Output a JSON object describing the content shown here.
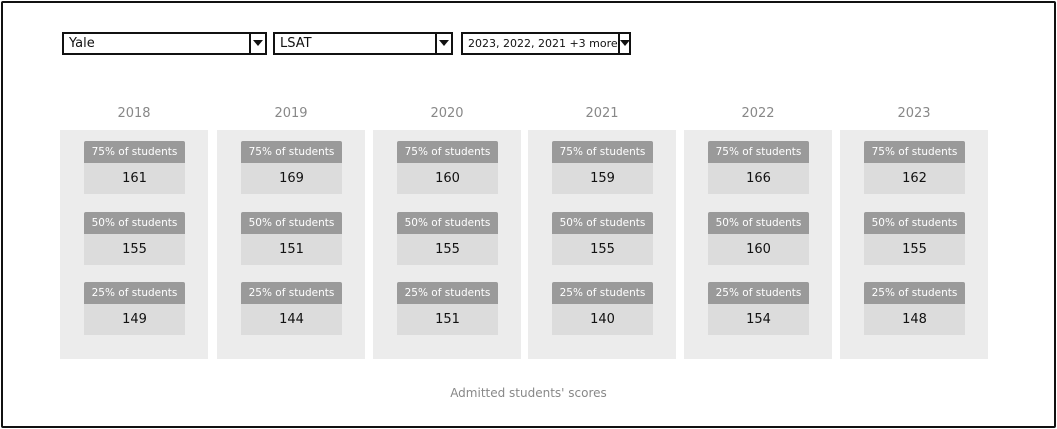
{
  "filters": {
    "school": "Yale",
    "test": "LSAT",
    "years": "2023, 2022, 2021 +3 more"
  },
  "years": [
    {
      "year": "2018",
      "p75_label": "75% of students",
      "p75": "161",
      "p50_label": "50% of students",
      "p50": "155",
      "p25_label": "25% of students",
      "p25": "149"
    },
    {
      "year": "2019",
      "p75_label": "75% of students",
      "p75": "169",
      "p50_label": "50% of students",
      "p50": "151",
      "p25_label": "25% of students",
      "p25": "144"
    },
    {
      "year": "2020",
      "p75_label": "75% of students",
      "p75": "160",
      "p50_label": "50% of students",
      "p50": "155",
      "p25_label": "25% of students",
      "p25": "151"
    },
    {
      "year": "2021",
      "p75_label": "75% of students",
      "p75": "159",
      "p50_label": "50% of students",
      "p50": "155",
      "p25_label": "25% of students",
      "p25": "140"
    },
    {
      "year": "2022",
      "p75_label": "75% of students",
      "p75": "166",
      "p50_label": "50% of students",
      "p50": "160",
      "p25_label": "25% of students",
      "p25": "154"
    },
    {
      "year": "2023",
      "p75_label": "75% of students",
      "p75": "162",
      "p50_label": "50% of students",
      "p50": "155",
      "p25_label": "25% of students",
      "p25": "148"
    }
  ],
  "caption": "Admitted students' scores",
  "icons": {
    "dropdown": "chevron-down-icon"
  }
}
